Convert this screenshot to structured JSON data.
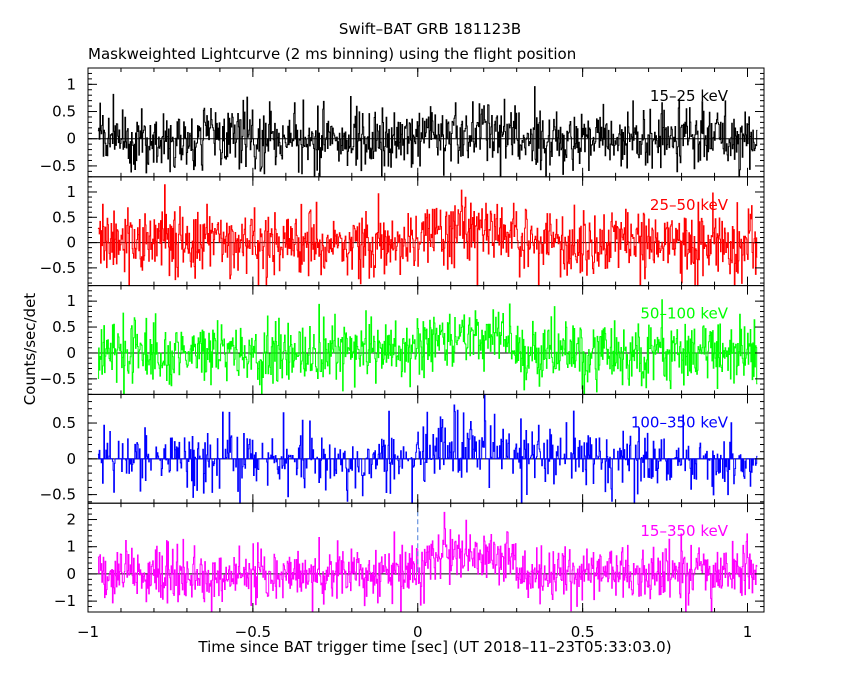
{
  "title": "Swift–BAT GRB 181123B",
  "subtitle": "Maskweighted Lightcurve (2 ms binning) using the flight position",
  "ylabel": "Counts/sec/det",
  "xlabel": "Time since BAT trigger time [sec] (UT 2018–11–23T05:33:03.0)",
  "chart_data": {
    "type": "line",
    "xlim": [
      -1.0,
      1.05
    ],
    "x_ticks": [
      -1,
      -0.5,
      0,
      0.5,
      1
    ],
    "x_tick_labels": [
      "−1",
      "−0.5",
      "0",
      "0.5",
      "1"
    ],
    "panels": [
      {
        "name": "15–25 keV",
        "color": "#000000",
        "ylim": [
          -0.7,
          1.3
        ],
        "y_ticks": [
          -0.5,
          0,
          0.5,
          1
        ],
        "y_tick_labels": [
          "−0.5",
          "0",
          "0.5",
          "1"
        ],
        "noise": 0.28,
        "burst": 0.15,
        "clip": [
          -0.7,
          1.3
        ]
      },
      {
        "name": "25–50 keV",
        "color": "#ff0000",
        "ylim": [
          -0.85,
          1.3
        ],
        "y_ticks": [
          -0.5,
          0,
          0.5,
          1
        ],
        "y_tick_labels": [
          "−0.5",
          "0",
          "0.5",
          "1"
        ],
        "noise": 0.33,
        "burst": 0.3,
        "clip": [
          -0.85,
          1.3
        ]
      },
      {
        "name": "50–100 keV",
        "color": "#00ff00",
        "ylim": [
          -0.8,
          1.3
        ],
        "y_ticks": [
          -0.5,
          0,
          0.5,
          1
        ],
        "y_tick_labels": [
          "−0.5",
          "0",
          "0.5",
          "1"
        ],
        "noise": 0.3,
        "burst": 0.4,
        "clip": [
          -0.8,
          1.3
        ]
      },
      {
        "name": "100–350 keV",
        "color": "#0000ff",
        "ylim": [
          -0.62,
          0.9
        ],
        "y_ticks": [
          -0.5,
          0,
          0.5
        ],
        "y_tick_labels": [
          "−0.5",
          "0",
          "0.5"
        ],
        "noise": 0.24,
        "burst": 0.25,
        "clip": [
          -0.62,
          0.9
        ]
      },
      {
        "name": "15–350 keV",
        "color": "#ff00ff",
        "ylim": [
          -1.4,
          2.6
        ],
        "y_ticks": [
          -1,
          0,
          1,
          2
        ],
        "y_tick_labels": [
          "−1",
          "0",
          "1",
          "2"
        ],
        "noise": 0.5,
        "burst": 1.0,
        "clip": [
          -1.4,
          2.6
        ]
      }
    ],
    "data_start": -0.97,
    "data_end": 1.03,
    "bin_width": 0.002,
    "trigger_marker_x": 0,
    "burst_window": [
      0.02,
      0.3
    ]
  }
}
